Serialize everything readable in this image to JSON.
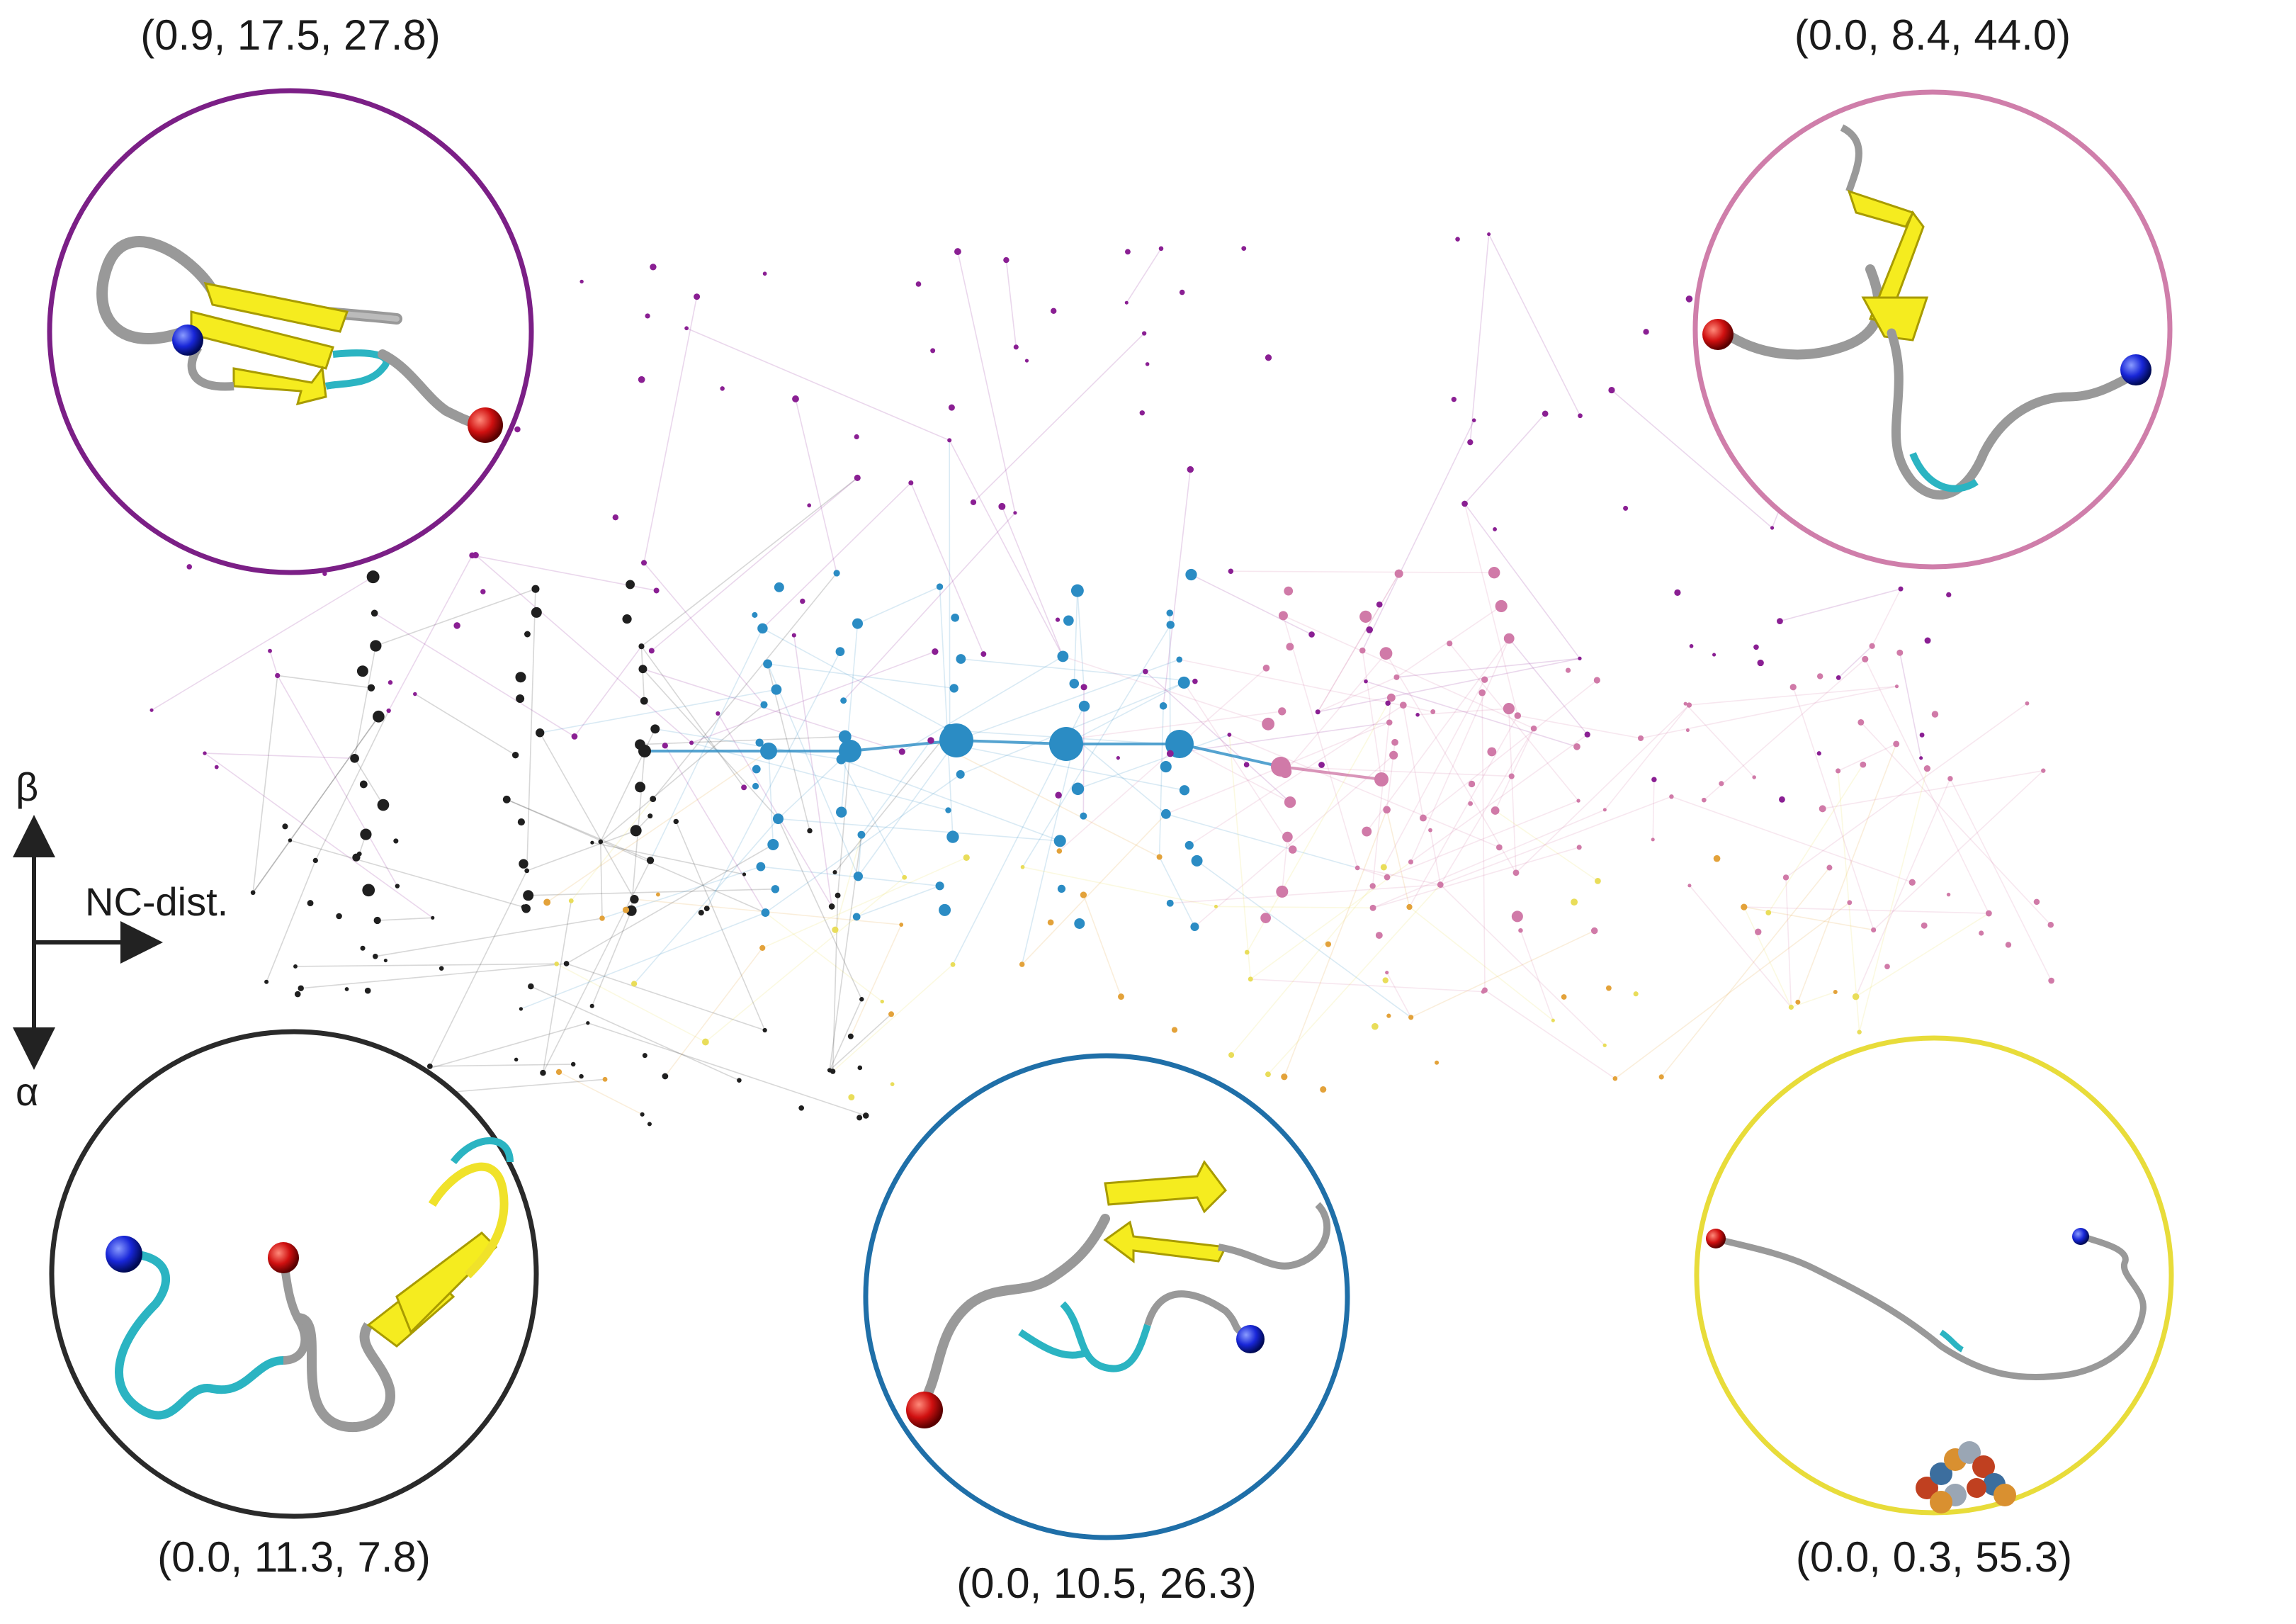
{
  "axes": {
    "up_label": "β",
    "down_label": "α",
    "right_label": "NC-dist."
  },
  "insets": [
    {
      "id": "purple",
      "color": "#7b1f86",
      "coords": "(0.9, 17.5, 27.8)"
    },
    {
      "id": "pink",
      "color": "#cf7eaa",
      "coords": "(0.0, 8.4, 44.0)"
    },
    {
      "id": "black",
      "color": "#2a2a2a",
      "coords": "(0.0, 11.3, 7.8)"
    },
    {
      "id": "blue",
      "color": "#1f6fa8",
      "coords": "(0.0, 10.5, 26.3)"
    },
    {
      "id": "yellow",
      "color": "#e8dc3a",
      "coords": "(0.0, 0.3, 55.3)"
    }
  ],
  "network_colors": {
    "black": "#1f1f1f",
    "blue": "#2b8cc4",
    "purple": "#8a1f93",
    "pink": "#d07aa8",
    "orange": "#e3a23a",
    "yellow": "#e9dd5a"
  }
}
